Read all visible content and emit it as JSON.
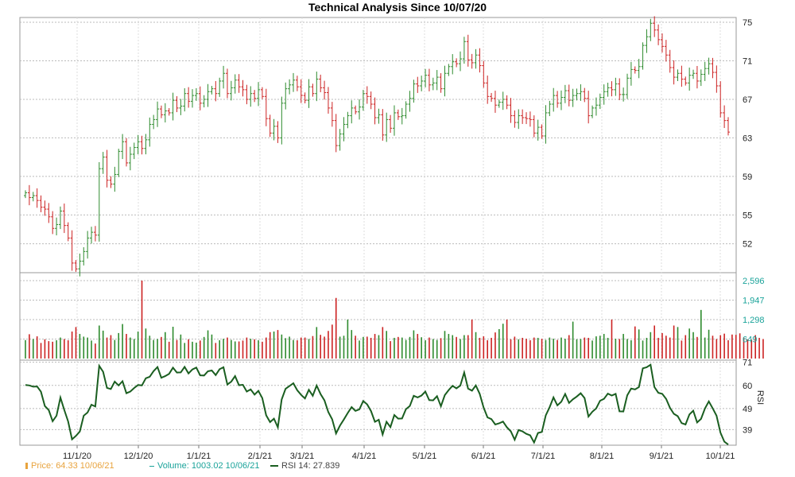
{
  "chart_data": {
    "type": "line",
    "title": "Technical Analysis Since 10/07/20",
    "x_ticks": [
      "11/1/20",
      "12/1/20",
      "1/1/21",
      "2/1/21",
      "3/1/21",
      "4/1/21",
      "5/1/21",
      "6/1/21",
      "7/1/21",
      "8/1/21",
      "9/1/21",
      "10/1/21"
    ],
    "price_panel": {
      "series": "OHLC bars",
      "yticks": [
        "75",
        "71",
        "67",
        "63",
        "59",
        "55",
        "52"
      ],
      "ytick_values": [
        75,
        71,
        67,
        63,
        59,
        55,
        52
      ],
      "ylim": [
        49,
        75.5
      ],
      "up_color": "#2e8b2e",
      "down_color": "#cc2222",
      "closes": [
        57.3,
        56.8,
        57.0,
        56.5,
        55.8,
        55.6,
        54.8,
        53.6,
        54.0,
        55.4,
        53.9,
        52.6,
        50.0,
        49.4,
        50.2,
        51.2,
        52.6,
        53.2,
        52.9,
        59.8,
        61.0,
        58.6,
        58.2,
        59.2,
        61.6,
        62.6,
        60.4,
        61.3,
        62.0,
        62.6,
        61.9,
        62.8,
        64.4,
        64.9,
        66.0,
        65.4,
        65.8,
        65.6,
        66.9,
        66.1,
        66.3,
        67.6,
        66.8,
        67.4,
        67.6,
        66.6,
        67.0,
        67.8,
        68.1,
        67.6,
        68.9,
        69.7,
        67.6,
        68.2,
        69.0,
        68.3,
        68.0,
        67.0,
        67.6,
        67.1,
        68.0,
        67.3,
        65.0,
        63.5,
        64.2,
        63.0,
        66.6,
        68.1,
        68.5,
        69.0,
        68.3,
        67.4,
        66.9,
        68.3,
        67.6,
        69.1,
        68.2,
        67.7,
        66.1,
        64.8,
        62.2,
        63.4,
        64.4,
        65.3,
        66.1,
        65.7,
        66.2,
        67.6,
        67.3,
        66.5,
        65.1,
        65.4,
        63.3,
        64.9,
        64.0,
        65.6,
        65.2,
        65.3,
        66.5,
        67.1,
        68.6,
        68.4,
        68.9,
        69.5,
        68.5,
        68.7,
        69.3,
        68.1,
        69.7,
        70.4,
        70.9,
        70.7,
        71.2,
        73.0,
        71.1,
        70.8,
        71.6,
        70.5,
        68.7,
        67.3,
        67.1,
        66.4,
        66.7,
        67.0,
        66.4,
        65.3,
        64.6,
        65.3,
        65.1,
        65.0,
        64.9,
        63.5,
        64.1,
        63.2,
        65.6,
        66.5,
        67.4,
        66.6,
        67.2,
        67.9,
        66.9,
        67.4,
        67.6,
        67.8,
        67.1,
        65.3,
        66.1,
        66.4,
        67.2,
        67.8,
        68.2,
        68.0,
        68.6,
        67.5,
        67.5,
        69.2,
        70.1,
        70.0,
        70.4,
        72.6,
        73.5,
        74.9,
        74.2,
        73.2,
        72.5,
        71.6,
        70.3,
        69.3,
        69.7,
        69.1,
        68.7,
        69.5,
        69.7,
        68.9,
        69.6,
        70.2,
        70.7,
        69.8,
        68.4,
        65.6,
        64.8,
        63.6
      ]
    },
    "volume_panel": {
      "yticks": [
        "2,596",
        "1,947",
        "1,298",
        "649"
      ],
      "ytick_values": [
        2596,
        1947,
        1298,
        649
      ],
      "ylim": [
        0,
        2596
      ],
      "values": [
        615,
        810,
        650,
        740,
        520,
        640,
        580,
        560,
        610,
        700,
        650,
        610,
        900,
        1050,
        820,
        730,
        700,
        600,
        500,
        1100,
        930,
        700,
        780,
        620,
        850,
        1150,
        820,
        700,
        650,
        900,
        2596,
        1000,
        760,
        620,
        650,
        720,
        880,
        560,
        1060,
        620,
        800,
        520,
        640,
        560,
        530,
        600,
        720,
        940,
        800,
        520,
        610,
        660,
        700,
        620,
        570,
        570,
        600,
        700,
        660,
        640,
        610,
        560,
        700,
        880,
        900,
        950,
        800,
        680,
        730,
        620,
        610,
        700,
        700,
        650,
        750,
        1050,
        790,
        730,
        920,
        1130,
        2020,
        730,
        760,
        1300,
        950,
        760,
        600,
        720,
        730,
        690,
        820,
        780,
        1050,
        920,
        580,
        690,
        720,
        700,
        620,
        720,
        940,
        820,
        710,
        610,
        700,
        650,
        620,
        680,
        920,
        820,
        780,
        720,
        650,
        780,
        780,
        1300,
        880,
        690,
        740,
        610,
        690,
        870,
        980,
        1160,
        1300,
        640,
        730,
        640,
        690,
        660,
        610,
        700,
        690,
        660,
        620,
        700,
        660,
        620,
        700,
        660,
        780,
        1230,
        640,
        650,
        700,
        690,
        600,
        740,
        760,
        820,
        690,
        1300,
        660,
        650,
        820,
        650,
        610,
        1070,
        970,
        600,
        690,
        880,
        1100,
        690,
        850,
        760,
        700,
        1100,
        1050,
        600,
        780,
        1000,
        880,
        720,
        1620,
        700,
        960,
        760,
        650,
        780,
        830,
        610,
        800,
        790,
        840,
        700,
        640,
        630,
        780,
        690,
        650
      ]
    },
    "rsi_panel": {
      "label": "RSI",
      "yticks": [
        "71",
        "60",
        "49",
        "39"
      ],
      "ytick_values": [
        71,
        60,
        49,
        39
      ],
      "ylim": [
        31.6,
        72
      ],
      "values": [
        60.2,
        60.0,
        59.4,
        59.5,
        57.0,
        50.2,
        48.3,
        43.0,
        45.6,
        54.2,
        48.4,
        42.9,
        34.4,
        36.0,
        38.1,
        45.6,
        47.1,
        50.8,
        50.0,
        69.3,
        66.5,
        58.8,
        58.3,
        61.8,
        60.0,
        62.0,
        56.3,
        57.1,
        58.8,
        60.2,
        60.0,
        63.4,
        64.1,
        66.8,
        68.7,
        63.6,
        64.4,
        65.5,
        68.4,
        66.1,
        66.2,
        68.8,
        65.7,
        67.6,
        68.5,
        64.8,
        64.7,
        66.7,
        67.1,
        64.9,
        67.7,
        68.6,
        60.4,
        61.8,
        64.4,
        60.1,
        60.3,
        57.1,
        58.1,
        55.6,
        57.4,
        54.0,
        45.8,
        42.6,
        44.2,
        40.1,
        53.3,
        58.4,
        59.7,
        61.0,
        57.7,
        55.5,
        53.8,
        57.9,
        55.1,
        59.9,
        55.9,
        52.9,
        47.3,
        43.9,
        37.2,
        40.9,
        43.8,
        46.9,
        49.7,
        47.9,
        48.6,
        52.6,
        51.0,
        47.8,
        42.7,
        43.7,
        36.7,
        42.7,
        40.2,
        45.9,
        44.2,
        44.3,
        48.7,
        50.2,
        55.1,
        54.3,
        55.2,
        57.1,
        53.0,
        52.9,
        54.9,
        50.1,
        55.4,
        57.8,
        59.8,
        58.6,
        59.9,
        66.1,
        58.5,
        57.5,
        60.0,
        56.0,
        49.5,
        44.8,
        44.0,
        41.4,
        42.0,
        42.8,
        40.1,
        38.2,
        34.2,
        38.8,
        38.2,
        37.0,
        36.3,
        32.9,
        37.4,
        37.9,
        45.8,
        49.6,
        54.3,
        50.5,
        52.2,
        55.9,
        51.7,
        53.4,
        54.7,
        56.3,
        54.0,
        45.2,
        47.5,
        49.1,
        52.7,
        53.6,
        56.1,
        55.2,
        56.0,
        47.7,
        47.6,
        55.3,
        58.5,
        58.1,
        59.2,
        68.1,
        68.6,
        69.8,
        59.2,
        56.5,
        56.0,
        53.6,
        49.4,
        46.5,
        45.4,
        42.1,
        41.4,
        46.2,
        48.0,
        42.4,
        44.1,
        49.0,
        52.4,
        49.1,
        45.6,
        37.6,
        33.3,
        31.9
      ]
    },
    "legend": [
      {
        "name": "Price:",
        "value": "64.33",
        "date": "10/06/21"
      },
      {
        "name": "Volume:",
        "value": "1003.02",
        "date": "10/06/21"
      },
      {
        "name": "RSI 14:",
        "value": "27.839"
      }
    ]
  }
}
